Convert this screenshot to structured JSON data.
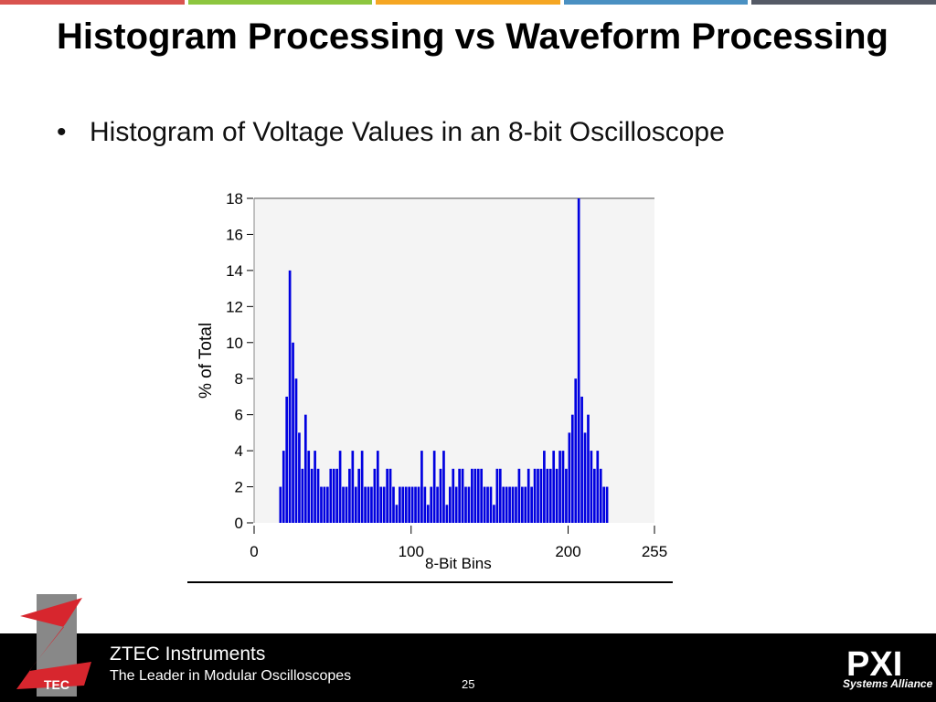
{
  "slide": {
    "title": "Histogram Processing vs Waveform Processing",
    "bullet": "Histogram of Voltage Values in an 8-bit Oscilloscope",
    "page_number": "25"
  },
  "topbar_colors": [
    "#d9534f",
    "#8dc63f",
    "#f5a623",
    "#4a90c2",
    "#555a66"
  ],
  "footer": {
    "brand_name": "ZTEC Instruments",
    "brand_tagline": "The Leader in Modular Oscilloscopes",
    "logo_letters": "TEC",
    "pxi_logo": "PXI",
    "pxi_sub": "Systems Alliance"
  },
  "chart_data": {
    "type": "bar",
    "xlabel": "8-Bit Bins",
    "ylabel": "% of Total",
    "xlim": [
      0,
      255
    ],
    "ylim": [
      0,
      18
    ],
    "x_ticks": [
      0,
      100,
      200,
      255
    ],
    "y_ticks": [
      0,
      2,
      4,
      6,
      8,
      10,
      12,
      14,
      16,
      18
    ],
    "bar_color": "#0000e0",
    "x": [
      16,
      18,
      20,
      22,
      24,
      26,
      28,
      30,
      32,
      34,
      36,
      38,
      40,
      42,
      44,
      46,
      48,
      50,
      52,
      54,
      56,
      58,
      60,
      62,
      64,
      66,
      68,
      70,
      72,
      74,
      76,
      78,
      80,
      82,
      84,
      86,
      88,
      90,
      92,
      94,
      96,
      98,
      100,
      102,
      104,
      106,
      108,
      110,
      112,
      114,
      116,
      118,
      120,
      122,
      124,
      126,
      128,
      130,
      132,
      134,
      136,
      138,
      140,
      142,
      144,
      146,
      148,
      150,
      152,
      154,
      156,
      158,
      160,
      162,
      164,
      166,
      168,
      170,
      172,
      174,
      176,
      178,
      180,
      182,
      184,
      186,
      188,
      190,
      192,
      194,
      196,
      198,
      200,
      202,
      204,
      206,
      208,
      210,
      212,
      214,
      216,
      218,
      220,
      222,
      224,
      226,
      228,
      230,
      232,
      234,
      236,
      238,
      240,
      242,
      244,
      246,
      248,
      250,
      252
    ],
    "values": [
      2,
      4,
      7,
      14,
      10,
      8,
      5,
      3,
      6,
      4,
      3,
      4,
      3,
      2,
      2,
      2,
      3,
      3,
      3,
      4,
      2,
      2,
      3,
      4,
      2,
      3,
      4,
      2,
      2,
      2,
      3,
      4,
      2,
      2,
      3,
      3,
      2,
      1,
      2,
      2,
      2,
      2,
      2,
      2,
      2,
      4,
      2,
      1,
      2,
      4,
      2,
      3,
      4,
      1,
      2,
      3,
      2,
      3,
      3,
      2,
      2,
      3,
      3,
      3,
      3,
      2,
      2,
      2,
      1,
      3,
      3,
      2,
      2,
      2,
      2,
      2,
      3,
      2,
      2,
      3,
      2,
      3,
      3,
      3,
      4,
      3,
      3,
      4,
      3,
      4,
      4,
      3,
      5,
      6,
      8,
      18,
      7,
      5,
      6,
      4,
      3,
      4,
      3,
      2,
      2,
      0,
      0,
      0,
      0,
      0,
      0,
      0,
      0,
      0,
      0,
      0,
      0,
      0,
      0
    ]
  }
}
